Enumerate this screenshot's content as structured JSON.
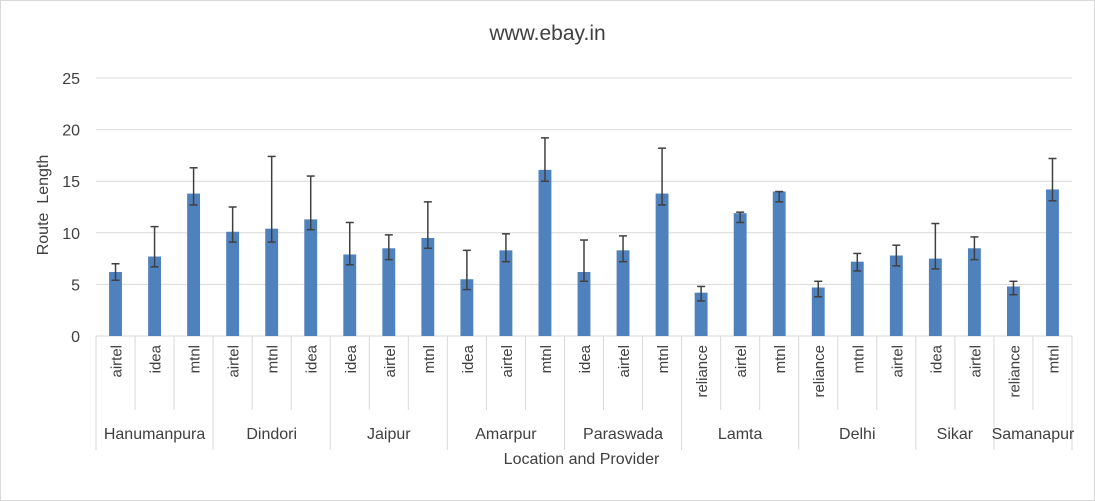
{
  "chart_data": {
    "type": "bar",
    "title": "www.ebay.in",
    "xlabel": "Location and Provider",
    "ylabel": "Route  Length",
    "ylim": [
      0,
      25
    ],
    "yticks": [
      0,
      5,
      10,
      15,
      20,
      25
    ],
    "grid": true,
    "legend": "none",
    "bar_color": "#4f81bd",
    "error_color": "#404040",
    "groups": [
      {
        "name": "Hanumanpura",
        "bars": [
          {
            "label": "airtel",
            "value": 6.2,
            "err_low": 5.4,
            "err_high": 7.0
          },
          {
            "label": "idea",
            "value": 7.7,
            "err_low": 6.7,
            "err_high": 10.6
          },
          {
            "label": "mtnl",
            "value": 13.8,
            "err_low": 12.7,
            "err_high": 16.3
          }
        ]
      },
      {
        "name": "Dindori",
        "bars": [
          {
            "label": "airtel",
            "value": 10.1,
            "err_low": 9.1,
            "err_high": 12.5
          },
          {
            "label": "mtnl",
            "value": 10.4,
            "err_low": 9.1,
            "err_high": 17.4
          },
          {
            "label": "idea",
            "value": 11.3,
            "err_low": 10.3,
            "err_high": 15.5
          }
        ]
      },
      {
        "name": "Jaipur",
        "bars": [
          {
            "label": "idea",
            "value": 7.9,
            "err_low": 6.9,
            "err_high": 11.0
          },
          {
            "label": "airtel",
            "value": 8.5,
            "err_low": 7.4,
            "err_high": 9.8
          },
          {
            "label": "mtnl",
            "value": 9.5,
            "err_low": 8.5,
            "err_high": 13.0
          }
        ]
      },
      {
        "name": "Amarpur",
        "bars": [
          {
            "label": "idea",
            "value": 5.5,
            "err_low": 4.5,
            "err_high": 8.3
          },
          {
            "label": "airtel",
            "value": 8.3,
            "err_low": 7.2,
            "err_high": 9.9
          },
          {
            "label": "mtnl",
            "value": 16.1,
            "err_low": 15.0,
            "err_high": 19.2
          }
        ]
      },
      {
        "name": "Paraswada",
        "bars": [
          {
            "label": "idea",
            "value": 6.2,
            "err_low": 5.3,
            "err_high": 9.3
          },
          {
            "label": "airtel",
            "value": 8.3,
            "err_low": 7.2,
            "err_high": 9.7
          },
          {
            "label": "mtnl",
            "value": 13.8,
            "err_low": 12.7,
            "err_high": 18.2
          }
        ]
      },
      {
        "name": "Lamta",
        "bars": [
          {
            "label": "reliance",
            "value": 4.2,
            "err_low": 3.4,
            "err_high": 4.8
          },
          {
            "label": "airtel",
            "value": 11.9,
            "err_low": 11.0,
            "err_high": 12.0
          },
          {
            "label": "mtnl",
            "value": 14.0,
            "err_low": 13.0,
            "err_high": 14.0
          }
        ]
      },
      {
        "name": "Delhi",
        "bars": [
          {
            "label": "reliance",
            "value": 4.7,
            "err_low": 3.8,
            "err_high": 5.3
          },
          {
            "label": "mtnl",
            "value": 7.2,
            "err_low": 6.3,
            "err_high": 8.0
          },
          {
            "label": "airtel",
            "value": 7.8,
            "err_low": 6.8,
            "err_high": 8.8
          }
        ]
      },
      {
        "name": "Sikar",
        "bars": [
          {
            "label": "idea",
            "value": 7.5,
            "err_low": 6.5,
            "err_high": 10.9
          },
          {
            "label": "airtel",
            "value": 8.5,
            "err_low": 7.4,
            "err_high": 9.6
          }
        ]
      },
      {
        "name": "Samanapur",
        "bars": [
          {
            "label": "reliance",
            "value": 4.8,
            "err_low": 4.0,
            "err_high": 5.3
          },
          {
            "label": "mtnl",
            "value": 14.2,
            "err_low": 13.1,
            "err_high": 17.2
          }
        ]
      }
    ]
  }
}
